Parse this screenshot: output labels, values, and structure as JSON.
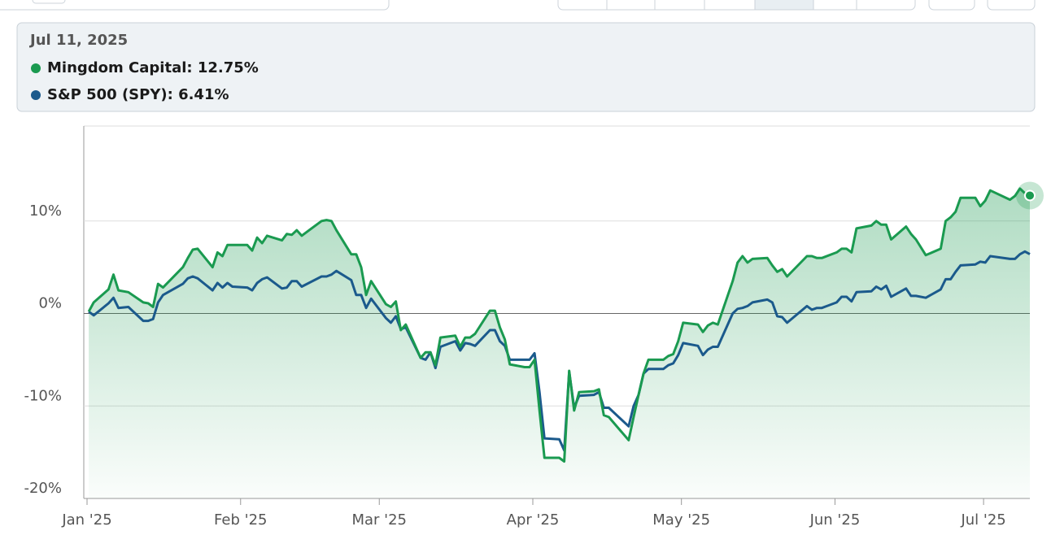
{
  "tooltip": {
    "date": "Jul 11, 2025",
    "lines": [
      "Mingdom Capital: 12.75%",
      "S&P 500 (SPY): 6.41%"
    ]
  },
  "chart_data": {
    "type": "line",
    "x": [
      "2025-01-02",
      "2025-01-03",
      "2025-01-06",
      "2025-01-07",
      "2025-01-08",
      "2025-01-10",
      "2025-01-13",
      "2025-01-14",
      "2025-01-15",
      "2025-01-16",
      "2025-01-17",
      "2025-01-21",
      "2025-01-22",
      "2025-01-23",
      "2025-01-24",
      "2025-01-27",
      "2025-01-28",
      "2025-01-29",
      "2025-01-30",
      "2025-01-31",
      "2025-02-03",
      "2025-02-04",
      "2025-02-05",
      "2025-02-06",
      "2025-02-07",
      "2025-02-10",
      "2025-02-11",
      "2025-02-12",
      "2025-02-13",
      "2025-02-14",
      "2025-02-18",
      "2025-02-19",
      "2025-02-20",
      "2025-02-21",
      "2025-02-24",
      "2025-02-25",
      "2025-02-26",
      "2025-02-27",
      "2025-02-28",
      "2025-03-03",
      "2025-03-04",
      "2025-03-05",
      "2025-03-06",
      "2025-03-07",
      "2025-03-10",
      "2025-03-11",
      "2025-03-12",
      "2025-03-13",
      "2025-03-14",
      "2025-03-17",
      "2025-03-18",
      "2025-03-19",
      "2025-03-20",
      "2025-03-21",
      "2025-03-24",
      "2025-03-25",
      "2025-03-26",
      "2025-03-27",
      "2025-03-28",
      "2025-03-31",
      "2025-04-01",
      "2025-04-02",
      "2025-04-03",
      "2025-04-04",
      "2025-04-07",
      "2025-04-08",
      "2025-04-09",
      "2025-04-10",
      "2025-04-11",
      "2025-04-14",
      "2025-04-15",
      "2025-04-16",
      "2025-04-17",
      "2025-04-21",
      "2025-04-22",
      "2025-04-23",
      "2025-04-24",
      "2025-04-25",
      "2025-04-28",
      "2025-04-29",
      "2025-04-30",
      "2025-05-01",
      "2025-05-02",
      "2025-05-05",
      "2025-05-06",
      "2025-05-07",
      "2025-05-08",
      "2025-05-09",
      "2025-05-12",
      "2025-05-13",
      "2025-05-14",
      "2025-05-15",
      "2025-05-16",
      "2025-05-19",
      "2025-05-20",
      "2025-05-21",
      "2025-05-22",
      "2025-05-23",
      "2025-05-27",
      "2025-05-28",
      "2025-05-29",
      "2025-05-30",
      "2025-06-02",
      "2025-06-03",
      "2025-06-04",
      "2025-06-05",
      "2025-06-06",
      "2025-06-09",
      "2025-06-10",
      "2025-06-11",
      "2025-06-12",
      "2025-06-13",
      "2025-06-16",
      "2025-06-17",
      "2025-06-18",
      "2025-06-20",
      "2025-06-23",
      "2025-06-24",
      "2025-06-25",
      "2025-06-26",
      "2025-06-27",
      "2025-06-30",
      "2025-07-01",
      "2025-07-02",
      "2025-07-03",
      "2025-07-07",
      "2025-07-08",
      "2025-07-09",
      "2025-07-10",
      "2025-07-11"
    ],
    "series": [
      {
        "name": "Mingdom Capital",
        "color": "#1a9a50",
        "area": true,
        "values": [
          0.2,
          1.2,
          2.6,
          4.2,
          2.5,
          2.3,
          1.2,
          1.1,
          0.7,
          3.2,
          2.8,
          5.0,
          6.0,
          6.9,
          7.0,
          5.0,
          6.6,
          6.2,
          7.4,
          7.4,
          7.4,
          6.8,
          8.2,
          7.6,
          8.4,
          7.9,
          8.6,
          8.5,
          9.0,
          8.4,
          10.0,
          10.1,
          10.0,
          9.0,
          6.4,
          6.4,
          5.0,
          2.0,
          3.5,
          1.0,
          0.7,
          1.3,
          -1.8,
          -1.2,
          -4.8,
          -4.2,
          -4.2,
          -5.6,
          -2.6,
          -2.4,
          -3.6,
          -2.6,
          -2.6,
          -2.2,
          0.3,
          0.3,
          -1.5,
          -2.8,
          -5.5,
          -5.8,
          -5.8,
          -5.0,
          -10.5,
          -15.6,
          -15.6,
          -16.0,
          -6.2,
          -10.5,
          -8.5,
          -8.4,
          -8.2,
          -11.0,
          -11.2,
          -13.7,
          -11.2,
          -8.8,
          -6.5,
          -5.0,
          -5.0,
          -4.6,
          -4.4,
          -3.0,
          -1.0,
          -1.2,
          -2.0,
          -1.3,
          -1.0,
          -1.2,
          3.5,
          5.5,
          6.2,
          5.5,
          5.9,
          6.0,
          5.2,
          4.5,
          4.8,
          4.0,
          6.2,
          6.2,
          6.0,
          6.0,
          6.6,
          7.0,
          7.0,
          6.6,
          9.2,
          9.5,
          10.0,
          9.6,
          9.6,
          8.0,
          9.4,
          8.6,
          8.0,
          6.3,
          7.0,
          10.0,
          10.4,
          11.0,
          12.5,
          12.5,
          11.6,
          12.2,
          13.3,
          12.3,
          12.7,
          13.5,
          13.0,
          12.75
        ]
      },
      {
        "name": "S&P 500 (SPY)",
        "color": "#1b5a8c",
        "values": [
          0.2,
          -0.2,
          1.1,
          1.7,
          0.6,
          0.7,
          -0.8,
          -0.8,
          -0.6,
          1.2,
          2.0,
          3.2,
          3.8,
          4.0,
          3.8,
          2.5,
          3.3,
          2.8,
          3.3,
          2.9,
          2.8,
          2.5,
          3.3,
          3.7,
          3.9,
          2.7,
          2.8,
          3.5,
          3.5,
          2.9,
          4.0,
          4.0,
          4.2,
          4.6,
          3.6,
          2.0,
          2.0,
          0.6,
          1.6,
          -0.5,
          -1.0,
          -0.3,
          -1.7,
          -1.5,
          -4.8,
          -5.0,
          -4.2,
          -5.9,
          -3.6,
          -3.0,
          -4.0,
          -3.2,
          -3.3,
          -3.5,
          -1.8,
          -1.8,
          -3.0,
          -3.5,
          -5.0,
          -5.0,
          -5.0,
          -4.3,
          -8.5,
          -13.5,
          -13.6,
          -14.8,
          -6.3,
          -10.2,
          -8.9,
          -8.8,
          -8.5,
          -10.2,
          -10.2,
          -12.2,
          -10.0,
          -8.8,
          -6.5,
          -6.0,
          -6.0,
          -5.6,
          -5.4,
          -4.5,
          -3.2,
          -3.5,
          -4.5,
          -3.9,
          -3.6,
          -3.6,
          0.0,
          0.5,
          0.6,
          0.8,
          1.2,
          1.5,
          1.2,
          -0.3,
          -0.4,
          -1.0,
          0.8,
          0.4,
          0.6,
          0.6,
          1.2,
          1.8,
          1.8,
          1.3,
          2.3,
          2.4,
          2.9,
          2.6,
          3.0,
          1.8,
          2.7,
          1.9,
          1.9,
          1.7,
          2.6,
          3.7,
          3.7,
          4.5,
          5.2,
          5.3,
          5.6,
          5.5,
          6.2,
          5.9,
          5.9,
          6.4,
          6.7,
          6.41
        ]
      }
    ],
    "xlim": [
      "2025-01-01",
      "2025-07-11"
    ],
    "xticks": [
      {
        "value": "2025-01-01",
        "label": "Jan '25"
      },
      {
        "value": "2025-02-01",
        "label": "Feb '25"
      },
      {
        "value": "2025-03-01",
        "label": "Mar '25"
      },
      {
        "value": "2025-04-01",
        "label": "Apr '25"
      },
      {
        "value": "2025-05-01",
        "label": "May '25"
      },
      {
        "value": "2025-06-01",
        "label": "Jun '25"
      },
      {
        "value": "2025-07-01",
        "label": "Jul '25"
      }
    ],
    "ylim": [
      -20,
      20
    ],
    "yticks": [
      {
        "value": -20,
        "label": "-20%"
      },
      {
        "value": -10,
        "label": "-10%"
      },
      {
        "value": 0,
        "label": "0%"
      },
      {
        "value": 10,
        "label": "10%"
      }
    ],
    "grid": true
  }
}
